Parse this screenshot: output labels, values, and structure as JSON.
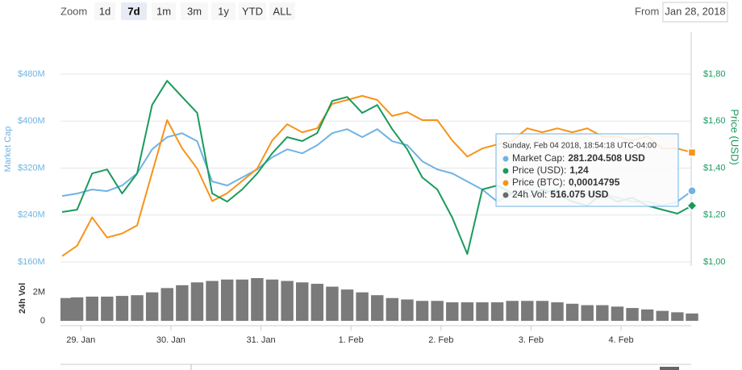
{
  "toolbar": {
    "zoom_label": "Zoom",
    "buttons": [
      "1d",
      "7d",
      "1m",
      "3m",
      "1y",
      "YTD",
      "ALL"
    ],
    "selected": "7d",
    "from_label": "From",
    "from_value": "Jan 28, 2018"
  },
  "chart_data": {
    "type": "line",
    "x": [
      "2018-01-28 19:00",
      "2018-01-28 23:00",
      "2018-01-29 03:00",
      "2018-01-29 07:00",
      "2018-01-29 11:00",
      "2018-01-29 15:00",
      "2018-01-29 19:00",
      "2018-01-29 23:00",
      "2018-01-30 03:00",
      "2018-01-30 07:00",
      "2018-01-30 11:00",
      "2018-01-30 15:00",
      "2018-01-30 19:00",
      "2018-01-30 23:00",
      "2018-01-31 03:00",
      "2018-01-31 07:00",
      "2018-01-31 11:00",
      "2018-01-31 15:00",
      "2018-01-31 19:00",
      "2018-01-31 23:00",
      "2018-02-01 03:00",
      "2018-02-01 07:00",
      "2018-02-01 11:00",
      "2018-02-01 15:00",
      "2018-02-01 19:00",
      "2018-02-01 23:00",
      "2018-02-02 03:00",
      "2018-02-02 07:00",
      "2018-02-02 11:00",
      "2018-02-02 15:00",
      "2018-02-02 19:00",
      "2018-02-02 23:00",
      "2018-02-03 03:00",
      "2018-02-03 07:00",
      "2018-02-03 11:00",
      "2018-02-03 15:00",
      "2018-02-03 19:00",
      "2018-02-03 23:00",
      "2018-02-04 03:00",
      "2018-02-04 07:00",
      "2018-02-04 11:00",
      "2018-02-04 15:00",
      "2018-02-04 18:54"
    ],
    "xlim": [
      "2018-01-28 19:00",
      "2018-02-04 18:54"
    ],
    "xticks": [
      {
        "value": "2018-01-29 00:00",
        "label": "29. Jan"
      },
      {
        "value": "2018-01-30 00:00",
        "label": "30. Jan"
      },
      {
        "value": "2018-01-31 00:00",
        "label": "31. Jan"
      },
      {
        "value": "2018-02-01 00:00",
        "label": "1. Feb"
      },
      {
        "value": "2018-02-02 00:00",
        "label": "2. Feb"
      },
      {
        "value": "2018-02-03 00:00",
        "label": "3. Feb"
      },
      {
        "value": "2018-02-04 00:00",
        "label": "4. Feb"
      }
    ],
    "ylabel": "Market Cap",
    "ylim": [
      160000000,
      480000000
    ],
    "yticks": [
      {
        "value": 160000000,
        "label": "$160M"
      },
      {
        "value": 240000000,
        "label": "$240M"
      },
      {
        "value": 320000000,
        "label": "$320M"
      },
      {
        "value": 400000000,
        "label": "$400M"
      },
      {
        "value": 480000000,
        "label": "$480M"
      }
    ],
    "y2label": "Price (USD)",
    "y2lim": [
      1,
      1.8
    ],
    "y2ticks": [
      {
        "value": 1,
        "label": "$1,00"
      },
      {
        "value": 1.2,
        "label": "$1,20"
      },
      {
        "value": 1.4,
        "label": "$1,40"
      },
      {
        "value": 1.6,
        "label": "$1,60"
      },
      {
        "value": 1.8,
        "label": "$1,80"
      }
    ],
    "y3lim": [
      9.2e-05,
      0.000188
    ],
    "grid": true,
    "series": [
      {
        "color": "#6fb3e3",
        "axis": "y",
        "marker": "circle",
        "values": [
          272500000,
          276600000,
          283500000,
          280700000,
          290300000,
          311000000,
          352000000,
          372700000,
          379500000,
          365800000,
          297200000,
          290300000,
          304000000,
          317800000,
          338400000,
          352000000,
          345200000,
          359000000,
          379500000,
          386400000,
          372700000,
          386400000,
          365800000,
          359000000,
          331500000,
          317800000,
          311000000,
          297200000,
          283500000,
          262900000,
          276600000,
          283500000,
          276600000,
          283500000,
          269800000,
          276600000,
          276600000,
          269800000,
          262900000,
          262900000,
          256000000,
          262900000,
          281204508
        ]
      },
      {
        "color": "#f7931a",
        "axis": "y3",
        "marker": "square",
        "values": [
          9.5e-05,
          0.0001003,
          0.0001148,
          0.0001045,
          0.0001066,
          0.0001107,
          0.0001376,
          0.0001645,
          0.00015,
          0.0001397,
          0.0001231,
          0.0001272,
          0.0001334,
          0.0001397,
          0.0001541,
          0.0001624,
          0.0001583,
          0.0001603,
          0.0001728,
          0.0001748,
          0.0001769,
          0.0001748,
          0.0001666,
          0.0001686,
          0.0001645,
          0.0001645,
          0.0001541,
          0.0001459,
          0.00015,
          0.0001521,
          0.0001541,
          0.0001603,
          0.0001583,
          0.0001603,
          0.0001583,
          0.0001603,
          0.0001562,
          0.0001562,
          0.0001541,
          0.0001562,
          0.00015,
          0.00015,
          0.00014795
        ]
      },
      {
        "color": "#1a9a5c",
        "axis": "y2",
        "marker": "diamond",
        "values": [
          1.213,
          1.223,
          1.377,
          1.394,
          1.292,
          1.377,
          1.669,
          1.772,
          1.703,
          1.635,
          1.292,
          1.257,
          1.309,
          1.377,
          1.463,
          1.532,
          1.515,
          1.549,
          1.686,
          1.703,
          1.635,
          1.669,
          1.566,
          1.48,
          1.36,
          1.309,
          1.189,
          1.034,
          1.309,
          1.326,
          1.292,
          1.274,
          1.309,
          1.292,
          1.257,
          1.24,
          1.292,
          1.257,
          1.274,
          1.24,
          1.223,
          1.206,
          1.24
        ]
      }
    ],
    "volume": {
      "title": "24h Vol",
      "color": "#7a7a7a",
      "ylim": [
        0,
        3000000
      ],
      "yticks": [
        0,
        {
          "value": 2000000,
          "label": "2M"
        }
      ],
      "values": [
        1600000,
        1650000,
        1700000,
        1700000,
        1750000,
        1800000,
        2000000,
        2300000,
        2500000,
        2700000,
        2800000,
        2900000,
        2900000,
        3000000,
        2900000,
        2800000,
        2700000,
        2600000,
        2400000,
        2200000,
        2000000,
        1800000,
        1600000,
        1500000,
        1400000,
        1400000,
        1300000,
        1300000,
        1300000,
        1300000,
        1400000,
        1400000,
        1400000,
        1300000,
        1200000,
        1100000,
        1100000,
        1000000,
        900000,
        800000,
        700000,
        600000,
        516075
      ]
    },
    "tooltip": {
      "date": "Sunday, Feb 04 2018, 18:54:18 UTC-04:00",
      "rows": [
        {
          "color": "#6fb3e3",
          "label": "Market Cap:",
          "value": "281.204.508 USD"
        },
        {
          "color": "#1a9a5c",
          "label": "Price (USD):",
          "value": "1,24"
        },
        {
          "color": "#f7931a",
          "label": "Price (BTC):",
          "value": "0,00014795"
        },
        {
          "color": "#6b6b6b",
          "label": "24h Vol:",
          "value": "516.075 USD"
        }
      ]
    }
  }
}
